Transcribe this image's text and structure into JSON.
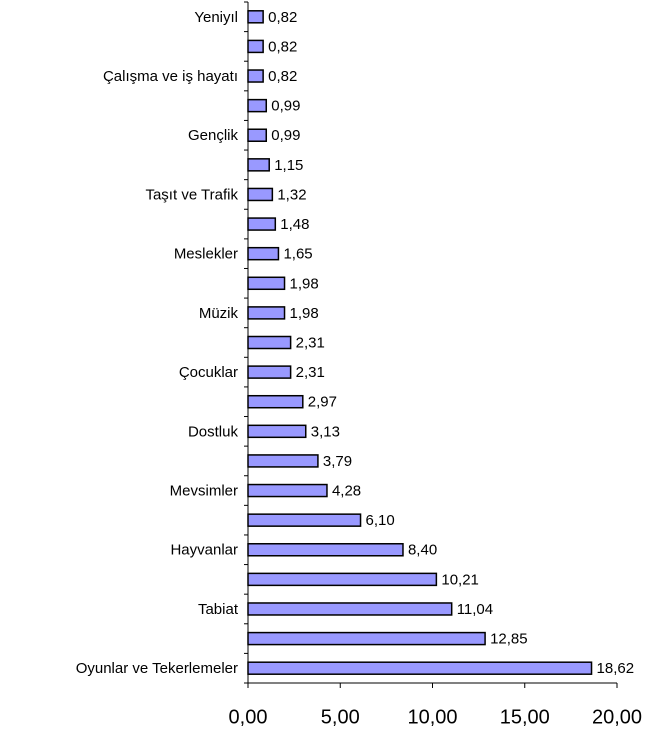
{
  "chart_data": {
    "type": "hbar",
    "categories": [
      "Yeniyıl",
      null,
      "Çalışma ve iş hayatı",
      null,
      "Gençlik",
      null,
      "Taşıt ve Trafik",
      null,
      "Meslekler",
      null,
      "Müzik",
      null,
      "Çocuklar",
      null,
      "Dostluk",
      null,
      "Mevsimler",
      null,
      "Hayvanlar",
      null,
      "Tabiat",
      null,
      "Oyunlar ve Tekerlemeler"
    ],
    "values": [
      0.82,
      0.82,
      0.82,
      0.99,
      0.99,
      1.15,
      1.32,
      1.48,
      1.65,
      1.98,
      1.98,
      2.31,
      2.31,
      2.97,
      3.13,
      3.79,
      4.28,
      6.1,
      8.4,
      10.21,
      11.04,
      12.85,
      18.62
    ],
    "value_labels": [
      "0,82",
      "0,82",
      "0,82",
      "0,99",
      "0,99",
      "1,15",
      "1,32",
      "1,48",
      "1,65",
      "1,98",
      "1,98",
      "2,31",
      "2,31",
      "2,97",
      "3,13",
      "3,79",
      "4,28",
      "6,10",
      "8,40",
      "10,21",
      "11,04",
      "12,85",
      "18,62"
    ],
    "color": "#9999ff",
    "xlim": [
      0,
      20
    ],
    "xticks": [
      {
        "value": 0,
        "label": "0,00"
      },
      {
        "value": 5,
        "label": "5,00"
      },
      {
        "value": 10,
        "label": "10,00"
      },
      {
        "value": 15,
        "label": "15,00"
      },
      {
        "value": 20,
        "label": "20,00"
      }
    ]
  }
}
